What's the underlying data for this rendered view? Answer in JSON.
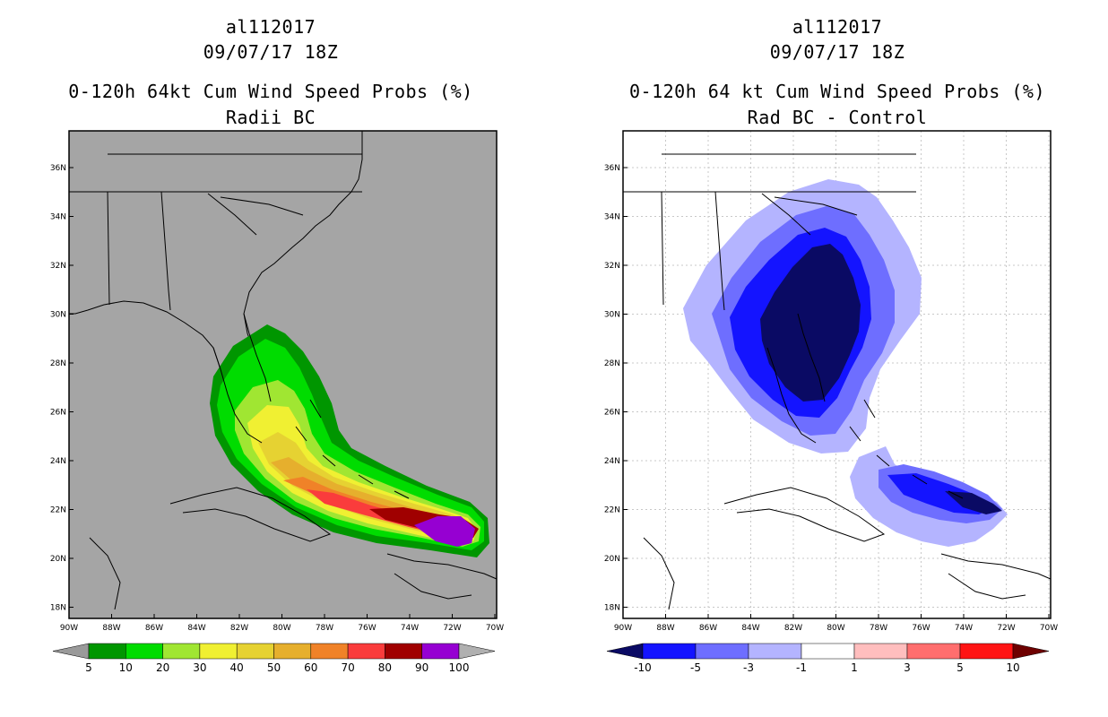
{
  "left_panel": {
    "storm_id": "al112017",
    "datetime": "09/07/17 18Z",
    "product": "0-120h 64kt Cum Wind Speed Probs (%)",
    "subtitle": "Radii BC",
    "colorbar": {
      "labels": [
        "5",
        "10",
        "20",
        "30",
        "40",
        "50",
        "60",
        "70",
        "80",
        "90",
        "100"
      ],
      "colors": [
        "#009600",
        "#00dc00",
        "#a0e632",
        "#f0f032",
        "#e6d232",
        "#e6af2d",
        "#f08228",
        "#fa3c3c",
        "#a00000",
        "#9600d2"
      ]
    }
  },
  "right_panel": {
    "storm_id": "al112017",
    "datetime": "09/07/17 18Z",
    "product": "0-120h 64 kt Cum Wind Speed Probs (%)",
    "subtitle": "Rad BC - Control",
    "colorbar": {
      "labels": [
        "-10",
        "-5",
        "-3",
        "-1",
        "1",
        "3",
        "5",
        "10"
      ],
      "colors": [
        "#1414ff",
        "#6e6eff",
        "#b4b4ff",
        "#ffffff",
        "#ffbebe",
        "#ff6e6e",
        "#ff1414"
      ]
    }
  },
  "axes": {
    "lat_labels": [
      "36N",
      "34N",
      "32N",
      "30N",
      "28N",
      "26N",
      "24N",
      "22N",
      "20N",
      "18N"
    ],
    "lon_labels": [
      "90W",
      "88W",
      "86W",
      "84W",
      "82W",
      "80W",
      "78W",
      "76W",
      "74W",
      "72W",
      "70W"
    ]
  },
  "map_colors": {
    "ocean_left": "#a5a5a5",
    "coast": "#000000",
    "grid": "#c8c8c8"
  }
}
